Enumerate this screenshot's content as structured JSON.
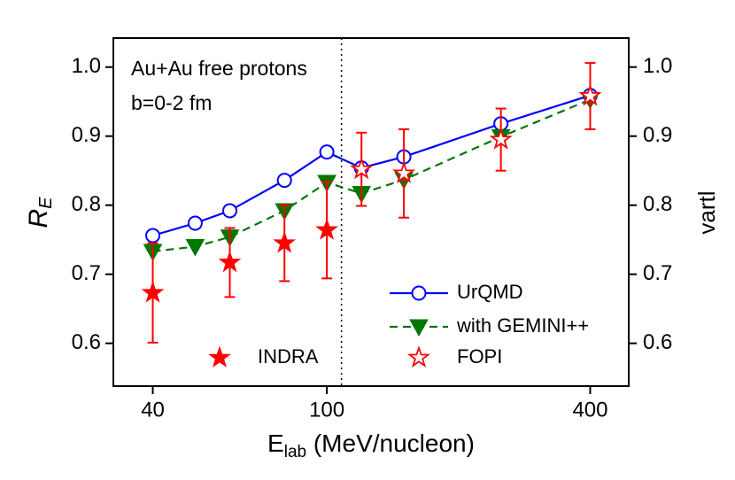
{
  "chart_data": {
    "type": "line",
    "annotations": [
      "Au+Au  free protons",
      "b=0-2 fm"
    ],
    "xlabel": [
      "E",
      "lab",
      " (MeV/nucleon)"
    ],
    "ylabel": [
      "R",
      "E"
    ],
    "y2label": "vartl",
    "xscale": "log",
    "xlim": [
      32.5,
      490
    ],
    "xticks": [
      40,
      100,
      400
    ],
    "ylim": [
      0.538,
      1.042
    ],
    "yticks": [
      {
        "value": 0.6,
        "label": "0.6"
      },
      {
        "value": 0.7,
        "label": "0.7"
      },
      {
        "value": 0.8,
        "label": "0.8"
      },
      {
        "value": 0.9,
        "label": "0.9"
      },
      {
        "value": 1.0,
        "label": "1.0"
      }
    ],
    "y2lim": [
      0.538,
      1.042
    ],
    "y2ticks": [
      {
        "value": 0.6,
        "label": "0.6"
      },
      {
        "value": 0.7,
        "label": "0.7"
      },
      {
        "value": 0.8,
        "label": "0.8"
      },
      {
        "value": 0.9,
        "label": "0.9"
      },
      {
        "value": 1.0,
        "label": "1.0"
      }
    ],
    "vline": 108,
    "series": [
      {
        "name": "UrQMD",
        "color": "#0000ff",
        "line": "solid",
        "marker": "open-circle",
        "x": [
          40,
          50,
          60,
          80,
          100,
          120,
          150,
          250,
          400
        ],
        "values": [
          0.756,
          0.774,
          0.792,
          0.836,
          0.877,
          0.854,
          0.87,
          0.918,
          0.959
        ]
      },
      {
        "name": "with GEMINI++",
        "color": "#007700",
        "line": "dashed",
        "marker": "triangle-down",
        "x": [
          40,
          50,
          60,
          80,
          100,
          120,
          150,
          250,
          400
        ],
        "values": [
          0.733,
          0.74,
          0.754,
          0.792,
          0.833,
          0.817,
          0.837,
          0.899,
          0.953
        ]
      },
      {
        "name": "FOPI",
        "color": "#ff0000",
        "line": "none",
        "marker": "open-star",
        "x": [
          120,
          150,
          250,
          400
        ],
        "values": [
          0.852,
          0.846,
          0.895,
          0.958
        ],
        "errors": [
          0.053,
          0.064,
          0.045,
          0.048
        ]
      },
      {
        "name": "INDRA",
        "color": "#ff0000",
        "line": "none",
        "marker": "star",
        "x": [
          40,
          60,
          80,
          100
        ],
        "values": [
          0.673,
          0.717,
          0.745,
          0.764
        ],
        "errors": [
          0.072,
          0.05,
          0.055,
          0.07
        ]
      }
    ]
  }
}
